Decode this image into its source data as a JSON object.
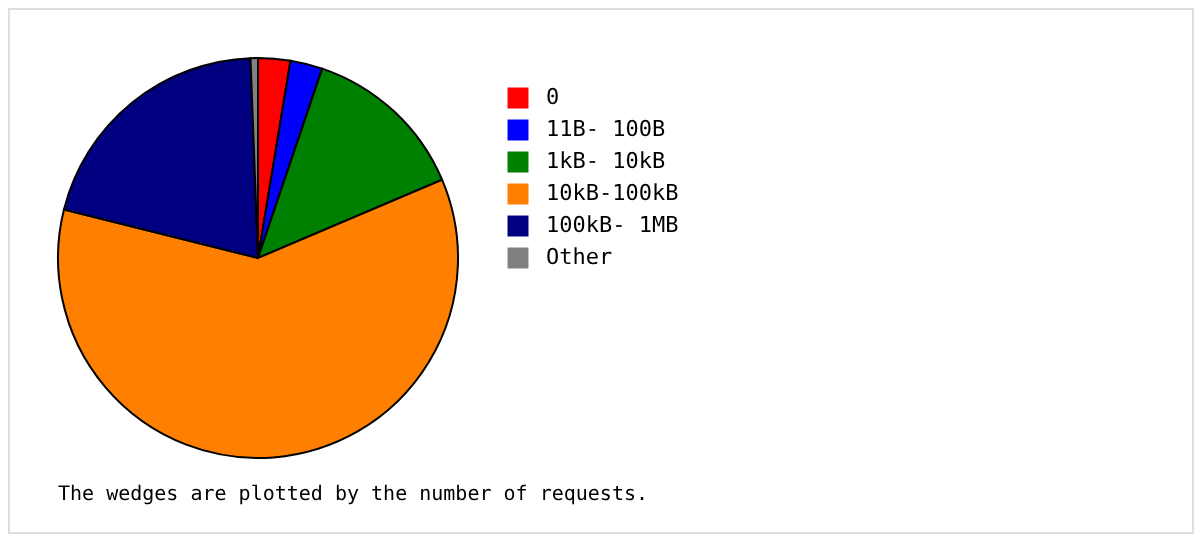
{
  "chart_data": {
    "type": "pie",
    "categories": [
      "0",
      "11B- 100B",
      "1kB- 10kB",
      "10kB-100kB",
      "100kB-  1MB",
      "Other"
    ],
    "values": [
      2.6,
      2.6,
      13.4,
      60.3,
      20.5,
      0.6
    ],
    "colors": [
      "#ff0000",
      "#0000ff",
      "#008000",
      "#ff8000",
      "#000080",
      "#808080"
    ],
    "legend": "right",
    "annotations": [
      "The wedges are plotted by the number of requests."
    ]
  }
}
